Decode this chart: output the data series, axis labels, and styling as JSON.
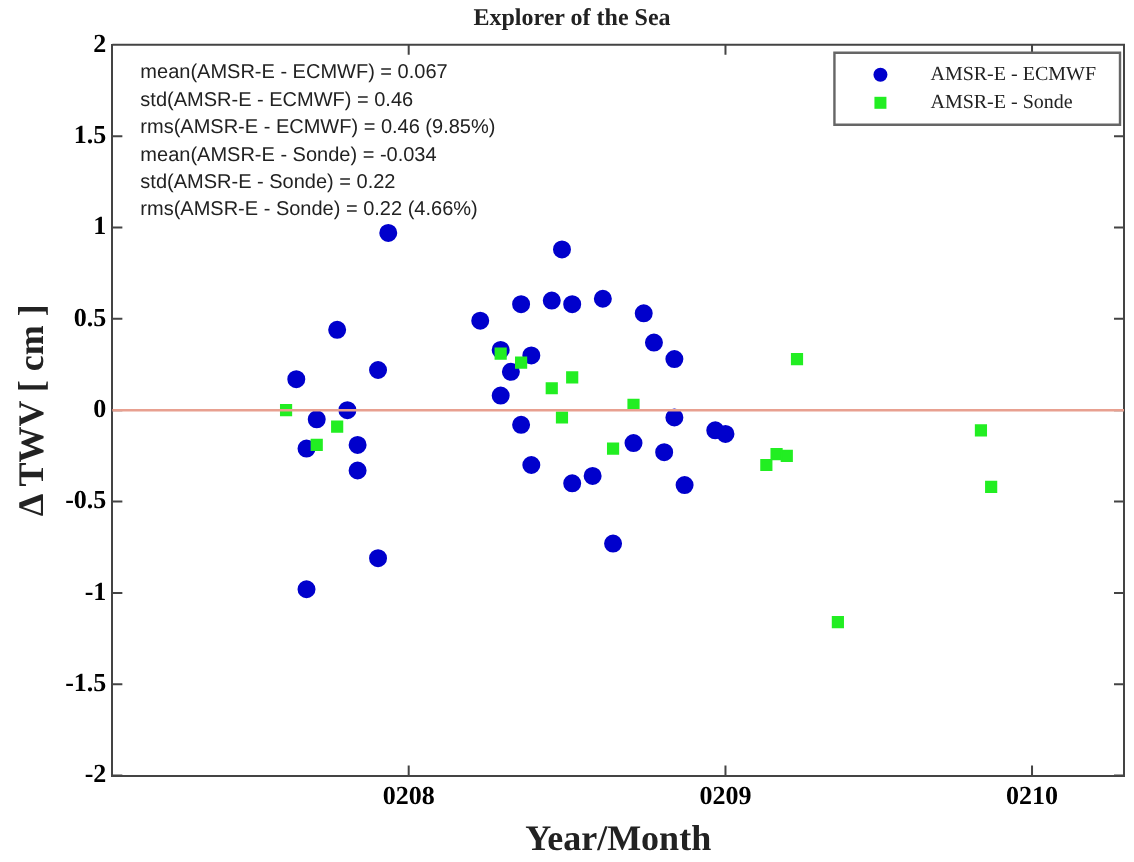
{
  "chart_data": {
    "type": "scatter",
    "title": "Explorer of the Sea",
    "xlabel": "Year/Month",
    "ylabel": "Δ TWV [ cm ]",
    "xlim": [
      "--07-03",
      "--10-10"
    ],
    "xticks": [
      {
        "value": "--08-01",
        "label": "0208"
      },
      {
        "value": "--09-01",
        "label": "0209"
      },
      {
        "value": "--10-01",
        "label": "0210"
      }
    ],
    "ylim": [
      -2,
      2
    ],
    "yticks": [
      -2,
      -1.5,
      -1,
      -0.5,
      0,
      0.5,
      1,
      1.5,
      2
    ],
    "grid": false,
    "legend": "top right",
    "annotations": [
      "mean(AMSR-E - ECMWF) = 0.067",
      "std(AMSR-E - ECMWF) = 0.46",
      "rms(AMSR-E - ECMWF) = 0.46 (9.85%)",
      "mean(AMSR-E - Sonde) = -0.034",
      "std(AMSR-E - Sonde) = 0.22",
      "rms(AMSR-E - Sonde) = 0.22 (4.66%)"
    ],
    "ref_lines": [
      {
        "axis": "y",
        "value": 0,
        "color": "#e8a090"
      }
    ],
    "series": [
      {
        "name": "AMSR-E - ECMWF",
        "color": "#0000cc",
        "marker": "circle",
        "x": [
          "--07-21",
          "--07-22",
          "--07-22",
          "--07-23",
          "--07-25",
          "--07-26",
          "--07-27",
          "--07-27",
          "--07-29",
          "--07-29",
          "--07-30",
          "--08-08",
          "--08-10",
          "--08-10",
          "--08-11",
          "--08-12",
          "--08-12",
          "--08-13",
          "--08-13",
          "--08-15",
          "--08-16",
          "--08-17",
          "--08-17",
          "--08-19",
          "--08-20",
          "--08-21",
          "--08-23",
          "--08-24",
          "--08-25",
          "--08-26",
          "--08-27",
          "--08-27",
          "--08-28",
          "--08-31",
          "--09-01"
        ],
        "values": [
          0.17,
          -0.98,
          -0.21,
          -0.05,
          0.44,
          0,
          -0.33,
          -0.19,
          0.22,
          -0.81,
          0.97,
          0.49,
          0.08,
          0.33,
          0.21,
          0.58,
          -0.08,
          -0.3,
          0.3,
          0.6,
          0.88,
          -0.4,
          0.58,
          -0.36,
          0.61,
          -0.73,
          -0.18,
          0.53,
          0.37,
          -0.23,
          -0.04,
          0.28,
          -0.41,
          -0.11,
          -0.13
        ]
      },
      {
        "name": "AMSR-E - Sonde",
        "color": "#22ee22",
        "marker": "square",
        "x": [
          "--07-20",
          "--07-23",
          "--07-25",
          "--08-10",
          "--08-12",
          "--08-15",
          "--08-16",
          "--08-17",
          "--08-21",
          "--08-23",
          "--09-05",
          "--09-06",
          "--09-07",
          "--09-08",
          "--09-12",
          "--09-26",
          "--09-27"
        ],
        "values": [
          0,
          -0.19,
          -0.09,
          0.31,
          0.26,
          0.12,
          -0.04,
          0.18,
          -0.21,
          0.03,
          -0.3,
          -0.24,
          -0.25,
          0.28,
          -1.16,
          -0.11,
          -0.42
        ]
      }
    ]
  }
}
